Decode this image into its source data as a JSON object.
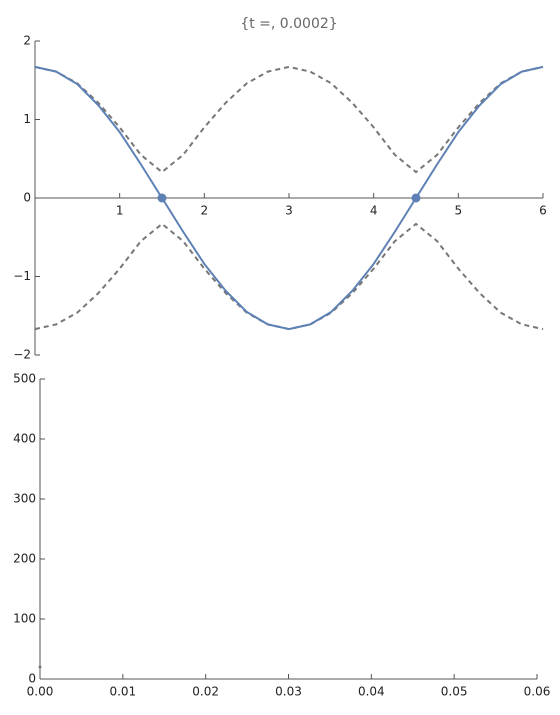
{
  "chart_data": [
    {
      "type": "line",
      "title": "{t =, 0.0002}",
      "x": [
        0,
        0.25,
        0.5,
        0.75,
        1,
        1.25,
        1.5,
        1.75,
        2,
        2.25,
        2.5,
        2.75,
        3,
        3.25,
        3.5,
        3.75,
        4,
        4.25,
        4.5,
        4.75,
        5,
        5.25,
        5.5,
        5.75,
        6
      ],
      "series": [
        {
          "color": "#777777",
          "dashed": true,
          "values": [
            1.67,
            1.61,
            1.46,
            1.21,
            0.9,
            0.55,
            0.33,
            0.55,
            0.9,
            1.21,
            1.46,
            1.61,
            1.67,
            1.61,
            1.46,
            1.21,
            0.9,
            0.55,
            0.33,
            0.55,
            0.9,
            1.21,
            1.46,
            1.61,
            1.67
          ]
        },
        {
          "color": "#777777",
          "dashed": true,
          "values": [
            -1.67,
            -1.61,
            -1.46,
            -1.21,
            -0.9,
            -0.55,
            -0.33,
            -0.55,
            -0.9,
            -1.21,
            -1.46,
            -1.61,
            -1.67,
            -1.61,
            -1.46,
            -1.21,
            -0.9,
            -0.55,
            -0.33,
            -0.55,
            -0.9,
            -1.21,
            -1.46,
            -1.61,
            -1.67
          ]
        },
        {
          "color": "#5e81b5",
          "dashed": false,
          "values": [
            1.67,
            1.61,
            1.45,
            1.18,
            0.84,
            0.43,
            0,
            -0.43,
            -0.84,
            -1.18,
            -1.45,
            -1.61,
            -1.67,
            -1.61,
            -1.45,
            -1.18,
            -0.84,
            -0.43,
            0,
            0.43,
            0.84,
            1.18,
            1.45,
            1.61,
            1.67
          ]
        },
        {
          "type": "scatter",
          "color": "#5e81b5",
          "x": [
            1.5,
            4.5
          ],
          "values": [
            0,
            0
          ]
        }
      ],
      "xlim": [
        0,
        6
      ],
      "xticks": [
        1,
        2,
        3,
        4,
        5,
        6
      ],
      "ylim": [
        -2,
        2
      ],
      "yticks": [
        {
          "value": -2,
          "label": "−2"
        },
        {
          "value": -1,
          "label": "−1"
        },
        0,
        1,
        2
      ]
    },
    {
      "type": "scatter",
      "series": [
        {
          "color": "#777777",
          "x": [
            0
          ],
          "values": [
            20
          ]
        }
      ],
      "xlim": [
        0,
        0.06
      ],
      "xticks": [
        {
          "value": 0,
          "label": "0.00"
        },
        {
          "value": 0.01,
          "label": "0.01"
        },
        {
          "value": 0.02,
          "label": "0.02"
        },
        {
          "value": 0.03,
          "label": "0.03"
        },
        {
          "value": 0.04,
          "label": "0.04"
        },
        {
          "value": 0.05,
          "label": "0.05"
        },
        {
          "value": 0.06,
          "label": "0.06"
        }
      ],
      "ylim": [
        0,
        500
      ],
      "yticks": [
        0,
        100,
        200,
        300,
        400,
        500
      ]
    }
  ]
}
